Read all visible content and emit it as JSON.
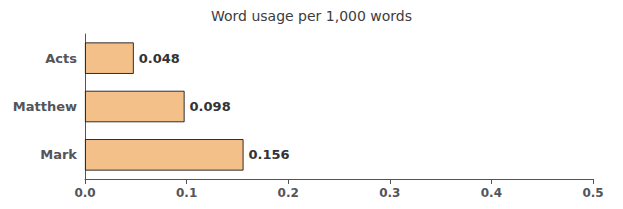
{
  "chart_data": {
    "type": "bar",
    "orientation": "horizontal",
    "title": "Word usage per 1,000 words",
    "categories": [
      "Acts",
      "Matthew",
      "Mark"
    ],
    "values": [
      0.048,
      0.098,
      0.156
    ],
    "value_labels": [
      "0.048",
      "0.098",
      "0.156"
    ],
    "data_labels": true,
    "color": "#F4C08A",
    "xlim": [
      0.0,
      0.5
    ],
    "xticks": [
      {
        "value": 0.0,
        "label": "0.0"
      },
      0.1,
      0.2,
      0.3,
      0.4,
      0.5
    ],
    "grid": false
  }
}
